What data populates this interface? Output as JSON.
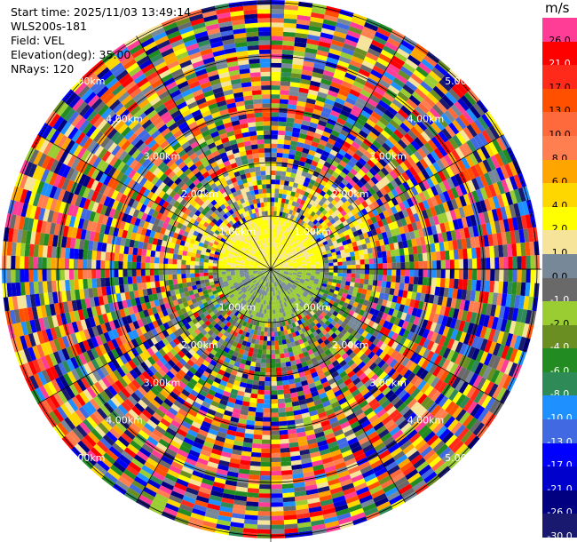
{
  "info": {
    "start_time": "Start time: 2025/11/03 13:49:14",
    "instrument": "WLS200s-181",
    "field": "Field: VEL",
    "elevation": "Elevation(deg): 35.00",
    "nrays": "NRays: 120"
  },
  "colorbar": {
    "unit": "m/s",
    "segments": [
      {
        "label": "26.0",
        "color": "#ff3c96"
      },
      {
        "label": "21.0",
        "color": "#ff0000"
      },
      {
        "label": "17.0",
        "color": "#ff2a1a"
      },
      {
        "label": "13.0",
        "color": "#ff5000"
      },
      {
        "label": "10.0",
        "color": "#ff6a3c"
      },
      {
        "label": "8.0",
        "color": "#ff7f50"
      },
      {
        "label": "6.0",
        "color": "#ffa500"
      },
      {
        "label": "4.0",
        "color": "#ffd700"
      },
      {
        "label": "2.0",
        "color": "#ffff00"
      },
      {
        "label": "1.0",
        "color": "#f5e49a"
      },
      {
        "label": "0.0",
        "color": "#778899"
      },
      {
        "label": "-1.0",
        "color": "#696969"
      },
      {
        "label": "-2.0",
        "color": "#9acd32"
      },
      {
        "label": "-4.0",
        "color": "#6b8e23"
      },
      {
        "label": "-6.0",
        "color": "#228b22"
      },
      {
        "label": "-8.0",
        "color": "#2e8b57"
      },
      {
        "label": "-10.0",
        "color": "#1e90ff"
      },
      {
        "label": "-13.0",
        "color": "#4169e1"
      },
      {
        "label": "-17.0",
        "color": "#0000ff"
      },
      {
        "label": "-21.0",
        "color": "#0000cd"
      },
      {
        "label": "-26.0",
        "color": "#000080"
      },
      {
        "label": "-30.0",
        "color": "#191970"
      }
    ]
  },
  "rings": [
    {
      "label": "1.00km"
    },
    {
      "label": "2.00km"
    },
    {
      "label": "3.00km"
    },
    {
      "label": "4.00km"
    },
    {
      "label": "5.00km"
    }
  ]
}
